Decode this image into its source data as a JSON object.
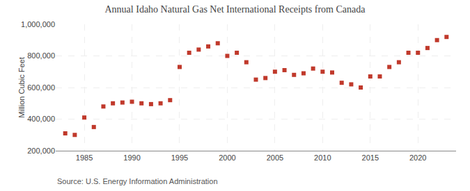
{
  "chart_data": {
    "type": "scatter",
    "title": "Annual Idaho Natural Gas Net International Receipts from Canada",
    "ylabel": "Million Cubic Feet",
    "annotations": [
      "Source: U.S. Energy Information Administration"
    ],
    "x": [
      1983,
      1984,
      1985,
      1986,
      1987,
      1988,
      1989,
      1990,
      1991,
      1992,
      1993,
      1994,
      1995,
      1996,
      1997,
      1998,
      1999,
      2000,
      2001,
      2002,
      2003,
      2004,
      2005,
      2006,
      2007,
      2008,
      2009,
      2010,
      2011,
      2012,
      2013,
      2014,
      2015,
      2016,
      2017,
      2018,
      2019,
      2020,
      2021,
      2022,
      2023
    ],
    "values": [
      310000,
      300000,
      410000,
      350000,
      480000,
      500000,
      505000,
      510000,
      500000,
      495000,
      500000,
      520000,
      730000,
      820000,
      840000,
      860000,
      880000,
      800000,
      820000,
      760000,
      650000,
      660000,
      700000,
      710000,
      680000,
      690000,
      720000,
      700000,
      695000,
      630000,
      620000,
      600000,
      670000,
      670000,
      730000,
      760000,
      820000,
      820000,
      850000,
      900000,
      920000
    ],
    "color": "#c0392b",
    "marker": "square",
    "xlim": [
      1982,
      2024
    ],
    "xticks": [
      1985,
      1990,
      1995,
      2000,
      2005,
      2010,
      2015,
      2020
    ],
    "ylim": [
      200000,
      1000000
    ],
    "yticks": [
      {
        "value": 200000,
        "label": "200,000"
      },
      {
        "value": 400000,
        "label": "400,000"
      },
      {
        "value": 600000,
        "label": "600,000"
      },
      {
        "value": 800000,
        "label": "800,000"
      },
      {
        "value": 1000000,
        "label": "1,000,000"
      }
    ],
    "grid": true
  }
}
